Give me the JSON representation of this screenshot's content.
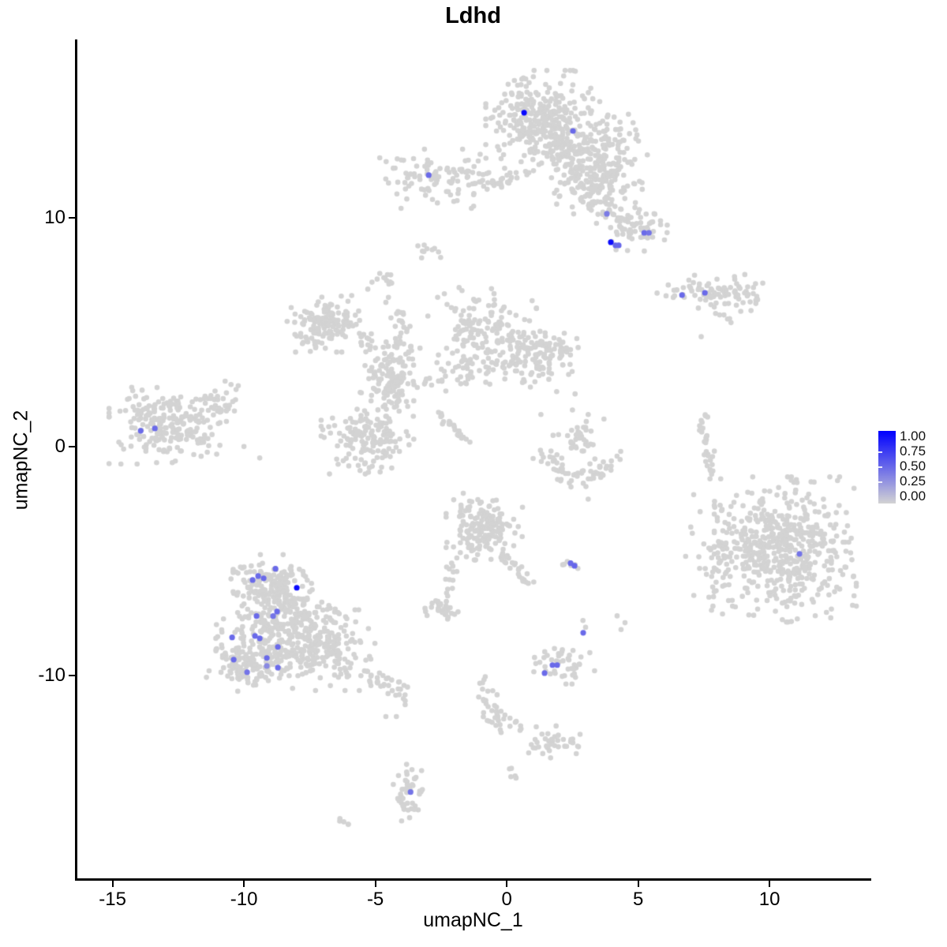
{
  "chart_data": {
    "type": "scatter",
    "title": "Ldhd",
    "xlabel": "umapNC_1",
    "ylabel": "umapNC_2",
    "xlim": [
      -16.34,
      13.87
    ],
    "ylim": [
      -18.87,
      17.79
    ],
    "x_ticks": [
      -15,
      -10,
      -5,
      0,
      5,
      10
    ],
    "y_ticks": [
      -10,
      0,
      10
    ],
    "grid": false,
    "legend_position": "right",
    "point_radius_px": 3.3,
    "expressing_point_radius_px": 3.6,
    "colors": {
      "background_cell": "#d3d3d3",
      "gradient_low": "#d3d3d3",
      "gradient_high": "#0000ff",
      "axis": "#000000",
      "text": "#000000"
    },
    "legend": {
      "labels": [
        "1.00",
        "0.75",
        "0.50",
        "0.25",
        "0.00"
      ],
      "gradient": [
        "#0000ff",
        "#d3d3d3"
      ]
    },
    "background_clusters": [
      {
        "type": "blob",
        "cx": 1.2,
        "cy": 14.2,
        "sx": 0.85,
        "sy": 0.95,
        "n": 300
      },
      {
        "type": "blob",
        "cx": 3.0,
        "cy": 13.2,
        "sx": 1.0,
        "sy": 0.85,
        "n": 220
      },
      {
        "type": "blob",
        "cx": 3.5,
        "cy": 11.4,
        "sx": 0.75,
        "sy": 0.7,
        "n": 120
      },
      {
        "type": "strand",
        "x1": 0.5,
        "y1": 11.9,
        "x2": -0.5,
        "y2": 11.3,
        "jitter": 0.15,
        "n": 18
      },
      {
        "type": "blob",
        "cx": 4.9,
        "cy": 9.6,
        "sx": 0.55,
        "sy": 0.45,
        "n": 70
      },
      {
        "type": "strand",
        "x1": 3.8,
        "y1": 10.9,
        "x2": 4.4,
        "y2": 9.9,
        "jitter": 0.18,
        "n": 12
      },
      {
        "type": "blob",
        "cx": -2.6,
        "cy": 11.7,
        "sx": 0.95,
        "sy": 0.55,
        "n": 100
      },
      {
        "type": "strand",
        "x1": -1.2,
        "y1": 11.55,
        "x2": -0.4,
        "y2": 11.3,
        "jitter": 0.12,
        "n": 10
      },
      {
        "type": "blob",
        "cx": -3.1,
        "cy": 8.6,
        "sx": 0.3,
        "sy": 0.22,
        "n": 10
      },
      {
        "type": "blob",
        "cx": -4.75,
        "cy": 7.25,
        "sx": 0.3,
        "sy": 0.35,
        "n": 13
      },
      {
        "type": "blob",
        "cx": 7.6,
        "cy": 6.75,
        "sx": 0.8,
        "sy": 0.32,
        "n": 55
      },
      {
        "type": "blob",
        "cx": 8.9,
        "cy": 6.8,
        "sx": 0.5,
        "sy": 0.38,
        "n": 30
      },
      {
        "type": "strand",
        "x1": 7.8,
        "y1": 6.1,
        "x2": 8.6,
        "y2": 5.5,
        "jitter": 0.1,
        "n": 8
      },
      {
        "type": "blob",
        "cx": -6.9,
        "cy": 5.35,
        "sx": 0.62,
        "sy": 0.52,
        "n": 140
      },
      {
        "type": "strand",
        "x1": -4.0,
        "y1": 5.9,
        "x2": -3.9,
        "y2": 3.6,
        "jitter": 0.18,
        "n": 35
      },
      {
        "type": "blob",
        "cx": -4.4,
        "cy": 2.85,
        "sx": 0.5,
        "sy": 0.65,
        "n": 110
      },
      {
        "type": "strand",
        "x1": -5.6,
        "y1": 4.9,
        "x2": -4.6,
        "y2": 4.0,
        "jitter": 0.2,
        "n": 20
      },
      {
        "type": "blob",
        "cx": -5.3,
        "cy": 0.4,
        "sx": 0.75,
        "sy": 0.68,
        "n": 150
      },
      {
        "type": "strand",
        "x1": -3.5,
        "y1": 2.9,
        "x2": 0.5,
        "y2": 3.5,
        "jitter": 0.28,
        "n": 55
      },
      {
        "type": "blob",
        "cx": -0.75,
        "cy": 4.95,
        "sx": 0.8,
        "sy": 0.85,
        "n": 150
      },
      {
        "type": "blob",
        "cx": 1.4,
        "cy": 4.05,
        "sx": 0.68,
        "sy": 0.55,
        "n": 110
      },
      {
        "type": "strand",
        "x1": -2.6,
        "y1": 1.45,
        "x2": -1.5,
        "y2": 0.2,
        "jitter": 0.07,
        "n": 22
      },
      {
        "type": "blob",
        "cx": -12.9,
        "cy": 1.0,
        "sx": 0.95,
        "sy": 0.75,
        "n": 230
      },
      {
        "type": "blob",
        "cx": -11.2,
        "cy": 1.8,
        "sx": 0.5,
        "sy": 0.45,
        "n": 30
      },
      {
        "type": "strand",
        "x1": 1.3,
        "y1": -0.3,
        "x2": 2.3,
        "y2": -1.3,
        "jitter": 0.22,
        "n": 22
      },
      {
        "type": "strand",
        "x1": 2.3,
        "y1": -1.3,
        "x2": 3.5,
        "y2": -1.2,
        "jitter": 0.22,
        "n": 22
      },
      {
        "type": "strand",
        "x1": 3.5,
        "y1": -1.2,
        "x2": 4.2,
        "y2": -0.6,
        "jitter": 0.2,
        "n": 16
      },
      {
        "type": "blob",
        "cx": 2.75,
        "cy": 0.35,
        "sx": 0.42,
        "sy": 0.38,
        "n": 35
      },
      {
        "type": "strand",
        "x1": 7.45,
        "y1": 1.3,
        "x2": 7.75,
        "y2": -1.2,
        "jitter": 0.12,
        "n": 30
      },
      {
        "type": "blob",
        "cx": 10.6,
        "cy": -4.5,
        "sx": 1.15,
        "sy": 1.35,
        "n": 520
      },
      {
        "type": "blob",
        "cx": 8.1,
        "cy": -4.7,
        "sx": 0.55,
        "sy": 1.4,
        "n": 70
      },
      {
        "type": "blob",
        "cx": -0.85,
        "cy": -3.5,
        "sx": 0.62,
        "sy": 0.62,
        "n": 160
      },
      {
        "type": "strand",
        "x1": -0.2,
        "y1": -4.6,
        "x2": 0.8,
        "y2": -6.0,
        "jitter": 0.15,
        "n": 25
      },
      {
        "type": "strand",
        "x1": -2.0,
        "y1": -5.0,
        "x2": -2.2,
        "y2": -6.4,
        "jitter": 0.15,
        "n": 14
      },
      {
        "type": "blob",
        "cx": -2.5,
        "cy": -7.1,
        "sx": 0.28,
        "sy": 0.25,
        "n": 35
      },
      {
        "type": "strand",
        "x1": -1.1,
        "y1": -10.2,
        "x2": -0.6,
        "y2": -11.0,
        "jitter": 0.12,
        "n": 8
      },
      {
        "type": "strand",
        "x1": 2.1,
        "y1": -5.1,
        "x2": 2.65,
        "y2": -5.25,
        "jitter": 0.08,
        "n": 7
      },
      {
        "type": "blob",
        "cx": 2.05,
        "cy": -9.6,
        "sx": 0.55,
        "sy": 0.33,
        "n": 50
      },
      {
        "type": "blob",
        "cx": -9.0,
        "cy": -5.9,
        "sx": 0.6,
        "sy": 0.5,
        "n": 120
      },
      {
        "type": "blob",
        "cx": -8.6,
        "cy": -7.9,
        "sx": 1.05,
        "sy": 0.9,
        "n": 300
      },
      {
        "type": "blob",
        "cx": -9.9,
        "cy": -9.4,
        "sx": 0.65,
        "sy": 0.55,
        "n": 130
      },
      {
        "type": "blob",
        "cx": -6.9,
        "cy": -8.9,
        "sx": 0.85,
        "sy": 0.75,
        "n": 170
      },
      {
        "type": "strand",
        "x1": -5.3,
        "y1": -9.9,
        "x2": -3.9,
        "y2": -10.9,
        "jitter": 0.22,
        "n": 35
      },
      {
        "type": "strand",
        "x1": -0.7,
        "y1": -10.9,
        "x2": -0.2,
        "y2": -12.4,
        "jitter": 0.18,
        "n": 28
      },
      {
        "type": "strand",
        "x1": 0.2,
        "y1": -12.0,
        "x2": 0.7,
        "y2": -12.3,
        "jitter": 0.1,
        "n": 6
      },
      {
        "type": "blob",
        "cx": 1.8,
        "cy": -12.9,
        "sx": 0.5,
        "sy": 0.3,
        "n": 40
      },
      {
        "type": "strand",
        "x1": 0.1,
        "y1": -14.1,
        "x2": 0.45,
        "y2": -14.55,
        "jitter": 0.08,
        "n": 6
      },
      {
        "type": "blob",
        "cx": -3.67,
        "cy": -14.95,
        "sx": 0.28,
        "sy": 0.6,
        "n": 45
      },
      {
        "type": "strand",
        "x1": -6.4,
        "y1": -16.3,
        "x2": -6.1,
        "y2": -16.55,
        "jitter": 0.06,
        "n": 5
      },
      {
        "type": "singles",
        "pts": [
          [
            2.9,
            -7.6
          ],
          [
            3.0,
            -7.9
          ],
          [
            4.2,
            -7.4
          ],
          [
            4.5,
            -7.7
          ],
          [
            4.35,
            -8.0
          ],
          [
            -4.6,
            -11.8
          ],
          [
            -4.2,
            -11.8
          ],
          [
            1.9,
            2.4
          ],
          [
            2.5,
            1.6
          ],
          [
            1.3,
            1.4
          ],
          [
            3.1,
            1.4
          ],
          [
            3.7,
            1.2
          ],
          [
            0.6,
            2.8
          ],
          [
            3.1,
            -2.3
          ],
          [
            -3.3,
            4.3
          ],
          [
            -2.6,
            4.0
          ],
          [
            -2.0,
            4.7
          ],
          [
            -1.3,
            5.4
          ],
          [
            -3.0,
            5.7
          ],
          [
            -0.1,
            6.1
          ],
          [
            -4.6,
            6.3
          ],
          [
            -5.9,
            6.6
          ],
          [
            0.9,
            2.6
          ],
          [
            2.6,
            2.3
          ],
          [
            7.4,
            4.8
          ],
          [
            7.9,
            -0.2
          ],
          [
            -10.0,
            0.0
          ],
          [
            -9.4,
            -0.5
          ]
        ]
      }
    ],
    "expressing_cells": [
      {
        "x": 0.66,
        "y": 14.59,
        "v": 0.97
      },
      {
        "x": 2.52,
        "y": 13.79,
        "v": 0.5
      },
      {
        "x": -2.97,
        "y": 11.86,
        "v": 0.5
      },
      {
        "x": 3.81,
        "y": 10.17,
        "v": 0.42
      },
      {
        "x": 3.96,
        "y": 8.93,
        "v": 0.95
      },
      {
        "x": 4.14,
        "y": 8.79,
        "v": 0.52
      },
      {
        "x": 4.26,
        "y": 8.79,
        "v": 0.52
      },
      {
        "x": 5.23,
        "y": 9.34,
        "v": 0.5
      },
      {
        "x": 5.41,
        "y": 9.34,
        "v": 0.45
      },
      {
        "x": 6.67,
        "y": 6.62,
        "v": 0.5
      },
      {
        "x": 7.54,
        "y": 6.72,
        "v": 0.5
      },
      {
        "x": -13.93,
        "y": 0.69,
        "v": 0.5
      },
      {
        "x": -13.39,
        "y": 0.79,
        "v": 0.5
      },
      {
        "x": 11.14,
        "y": -4.69,
        "v": 0.45
      },
      {
        "x": -8.8,
        "y": -5.34,
        "v": 0.5
      },
      {
        "x": -9.67,
        "y": -5.83,
        "v": 0.5
      },
      {
        "x": -9.46,
        "y": -5.66,
        "v": 0.5
      },
      {
        "x": -9.25,
        "y": -5.76,
        "v": 0.5
      },
      {
        "x": -7.99,
        "y": -6.17,
        "v": 0.95
      },
      {
        "x": -8.74,
        "y": -7.21,
        "v": 0.5
      },
      {
        "x": -8.89,
        "y": -7.41,
        "v": 0.45
      },
      {
        "x": -9.52,
        "y": -7.41,
        "v": 0.5
      },
      {
        "x": -9.58,
        "y": -8.28,
        "v": 0.5
      },
      {
        "x": -9.4,
        "y": -8.38,
        "v": 0.5
      },
      {
        "x": -10.45,
        "y": -8.34,
        "v": 0.5
      },
      {
        "x": -8.71,
        "y": -8.76,
        "v": 0.5
      },
      {
        "x": -10.39,
        "y": -9.31,
        "v": 0.5
      },
      {
        "x": -9.13,
        "y": -9.24,
        "v": 0.5
      },
      {
        "x": -9.13,
        "y": -9.59,
        "v": 0.35
      },
      {
        "x": -8.71,
        "y": -9.66,
        "v": 0.5
      },
      {
        "x": -9.88,
        "y": -9.86,
        "v": 0.45
      },
      {
        "x": 2.43,
        "y": -5.1,
        "v": 0.5
      },
      {
        "x": 2.58,
        "y": -5.21,
        "v": 0.52
      },
      {
        "x": 2.91,
        "y": -8.14,
        "v": 0.5
      },
      {
        "x": 1.44,
        "y": -9.9,
        "v": 0.5
      },
      {
        "x": 1.74,
        "y": -9.55,
        "v": 0.5
      },
      {
        "x": 1.92,
        "y": -9.55,
        "v": 0.5
      },
      {
        "x": -3.66,
        "y": -15.1,
        "v": 0.45
      }
    ]
  }
}
